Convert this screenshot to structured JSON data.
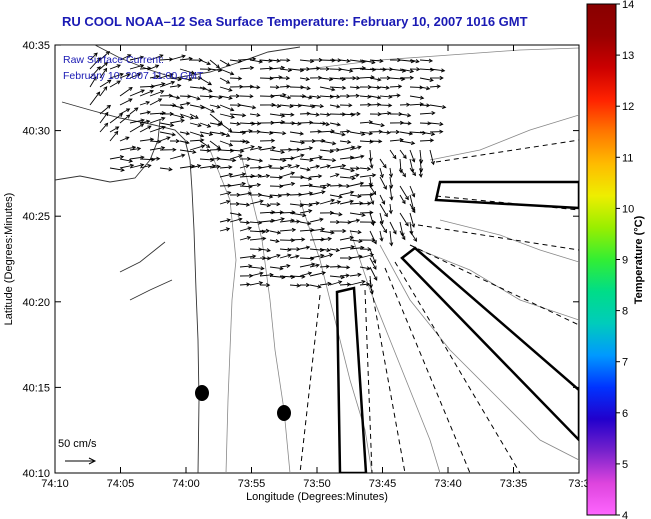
{
  "title": "RU COOL  NOAA–12  Sea Surface Temperature:  February 10, 2007 1016 GMT",
  "annotation": {
    "line1": "Raw Surface Current:",
    "line2": "February 10, 2007 11:00 GMT"
  },
  "axes": {
    "xlabel": "Longitude (Degrees:Minutes)",
    "ylabel": "Latitude (Degrees:Minutes)",
    "x_ticks": [
      "74:10",
      "74:05",
      "74:00",
      "73:55",
      "73:50",
      "73:45",
      "73:40",
      "73:35",
      "73:3"
    ],
    "y_ticks": [
      "40:35",
      "40:30",
      "40:25",
      "40:20",
      "40:15",
      "40:10"
    ]
  },
  "scale": {
    "label": "50 cm/s"
  },
  "colorbar": {
    "label": "Temperature (°C)",
    "ticks": [
      "14",
      "13",
      "12",
      "11",
      "10",
      "9",
      "8",
      "7",
      "6",
      "5",
      "4"
    ],
    "colors": [
      "#ff66ff",
      "#dd44dd",
      "#7722cc",
      "#2200cc",
      "#0033ff",
      "#0099ff",
      "#00ccbb",
      "#00dd88",
      "#33ee33",
      "#99ee00",
      "#eeee00",
      "#ffbb00",
      "#ff7700",
      "#ff2200",
      "#cc0000",
      "#990000",
      "#880000"
    ]
  }
}
